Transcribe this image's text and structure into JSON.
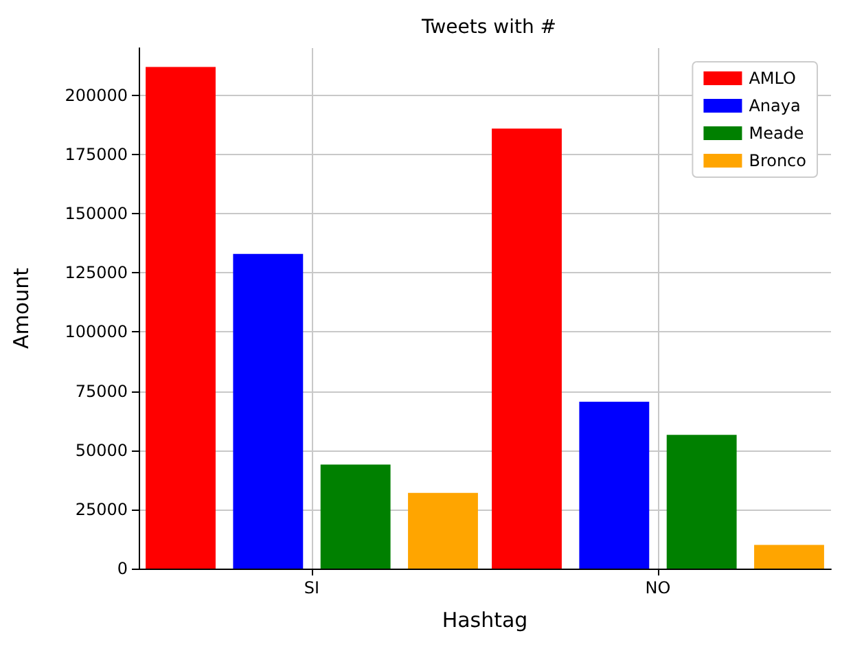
{
  "chart_data": {
    "type": "bar",
    "title": "Tweets with #",
    "xlabel": "Hashtag",
    "ylabel": "Amount",
    "categories": [
      "SI",
      "NO"
    ],
    "series": [
      {
        "name": "AMLO",
        "color": "#ff0000",
        "values": [
          212000,
          186000
        ]
      },
      {
        "name": "Anaya",
        "color": "#0000ff",
        "values": [
          133000,
          70500
        ]
      },
      {
        "name": "Meade",
        "color": "#008000",
        "values": [
          44000,
          56500
        ]
      },
      {
        "name": "Bronco",
        "color": "#ffa500",
        "values": [
          32000,
          10000
        ]
      }
    ],
    "ylim": [
      0,
      220000
    ],
    "yticks": [
      0,
      25000,
      50000,
      75000,
      100000,
      125000,
      150000,
      175000,
      200000
    ],
    "grid": true,
    "legend": "top right"
  }
}
